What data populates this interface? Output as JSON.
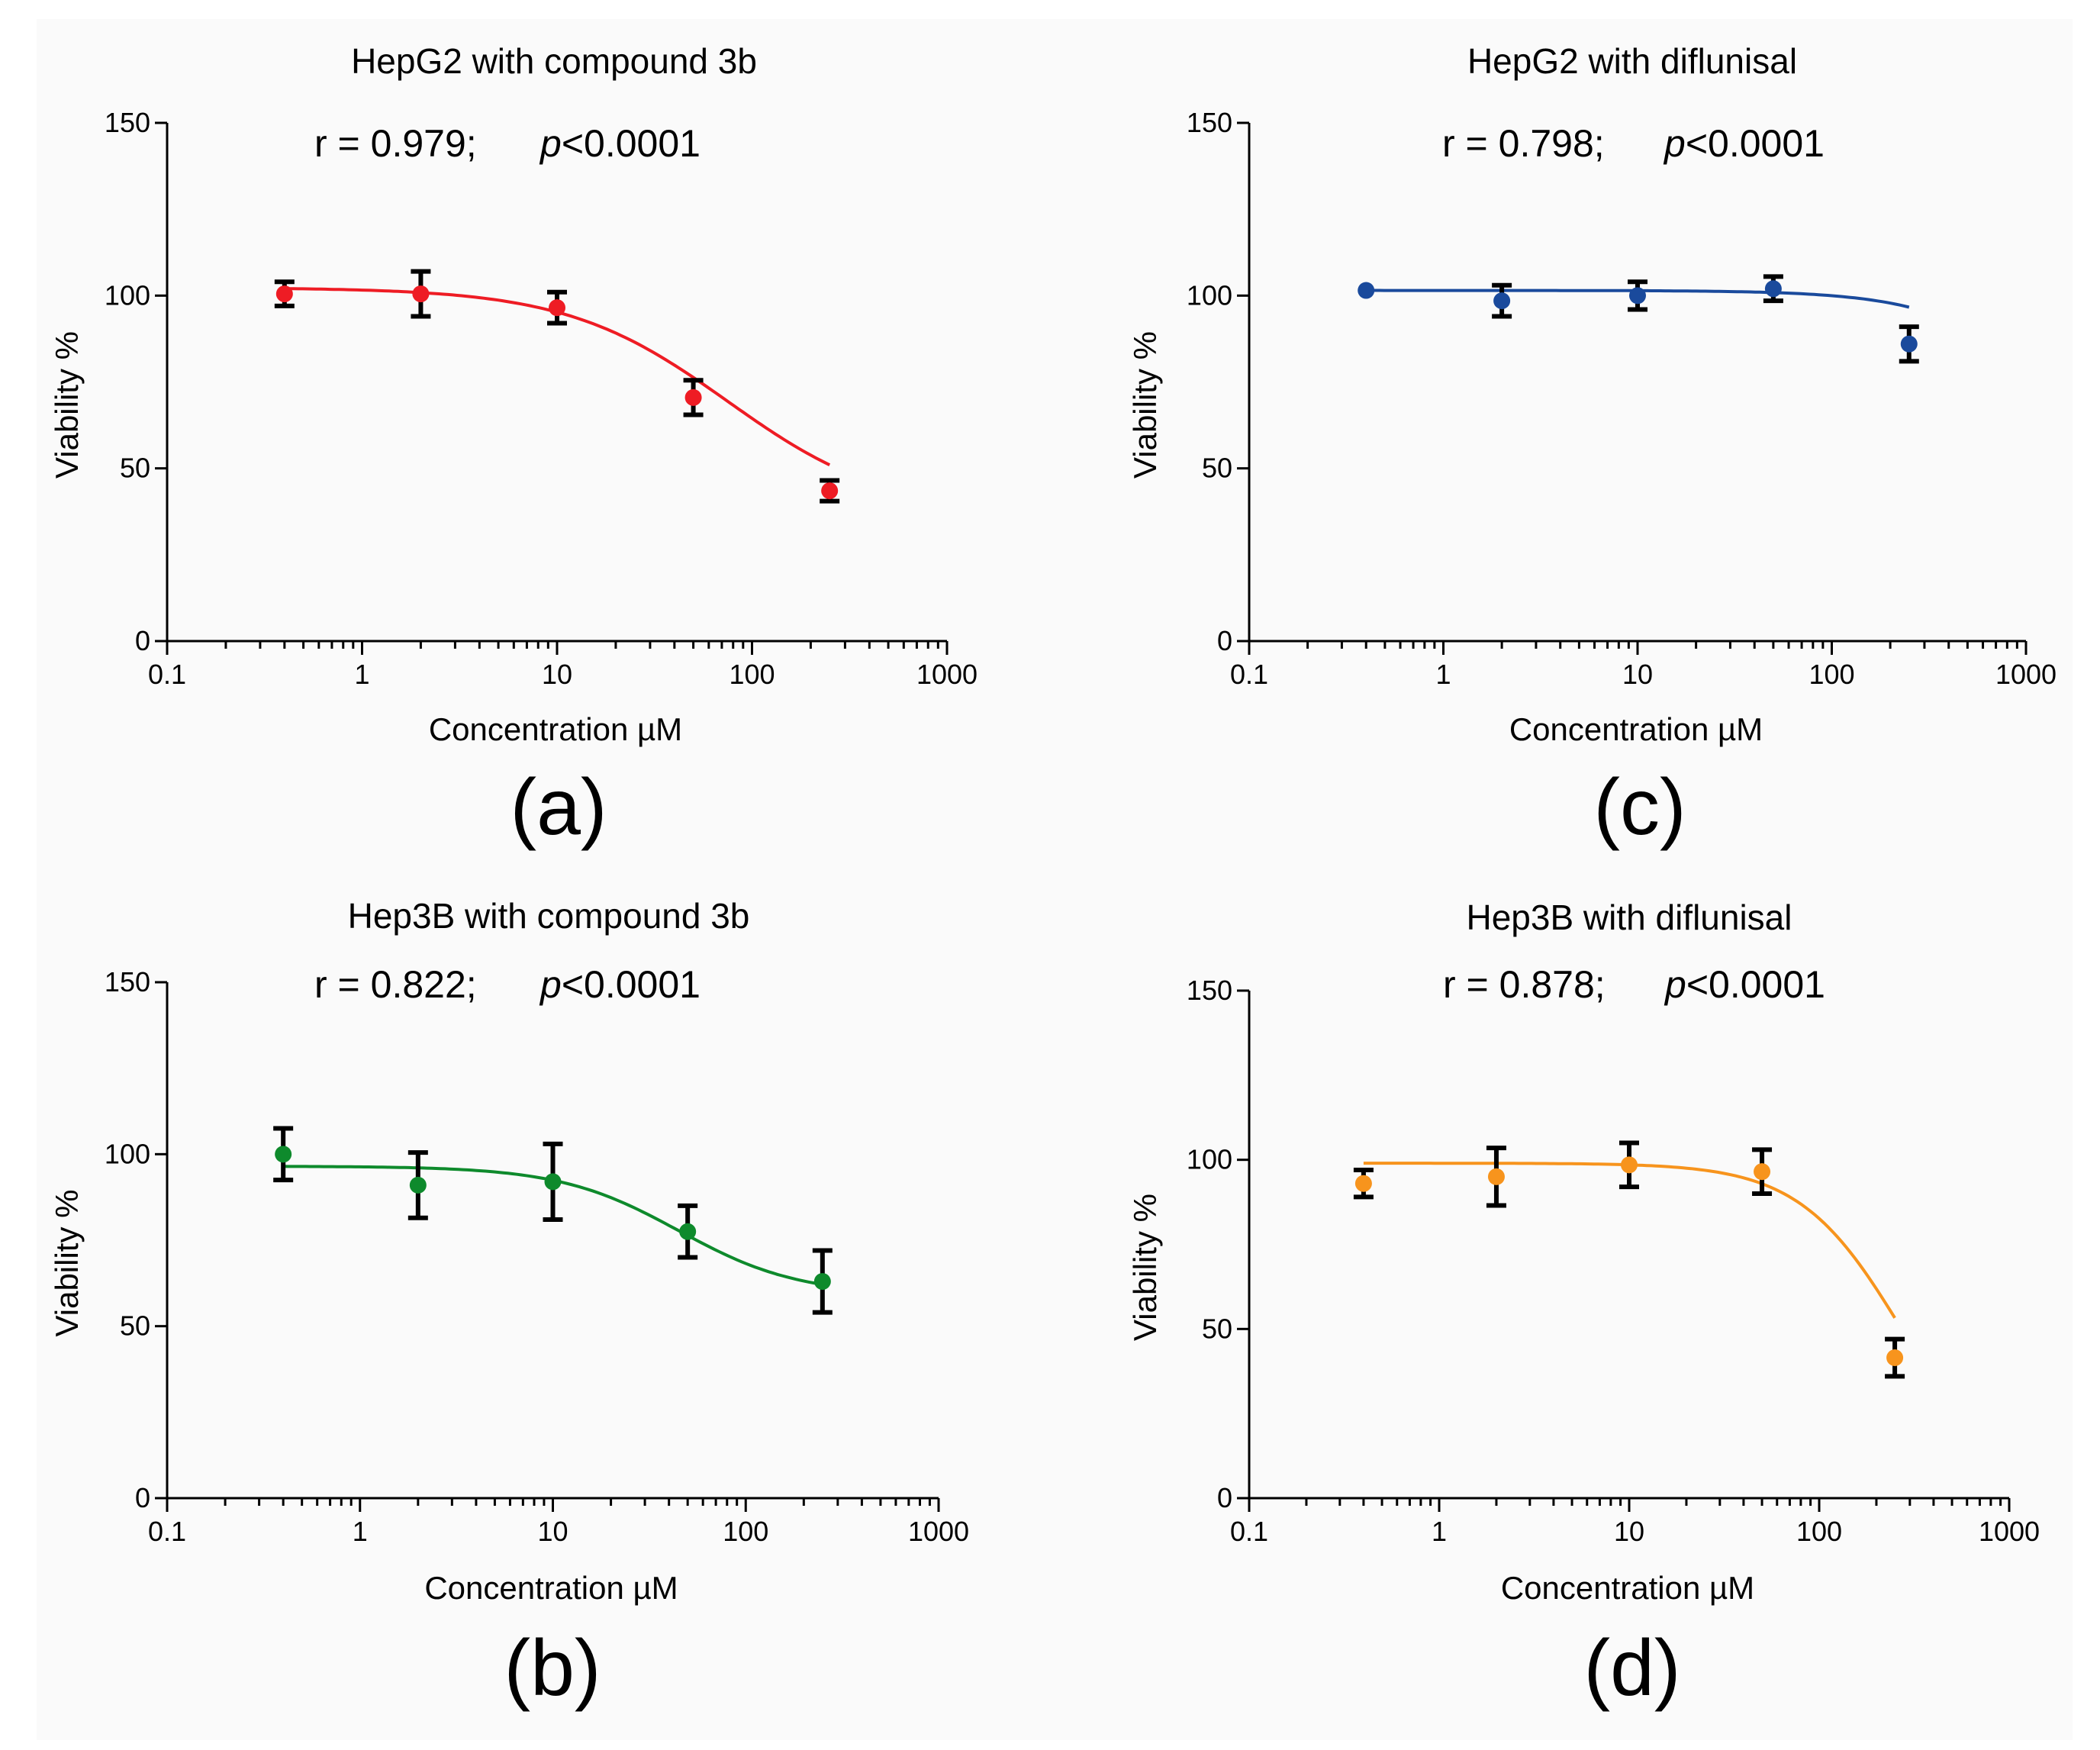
{
  "figure_background": "#fafafa",
  "chart_data": [
    {
      "id": "a",
      "type": "scatter",
      "title": "HepG2 with compound 3b",
      "stat_r": "r = 0.979;",
      "stat_p_italic": "p",
      "stat_p_rest": "<0.0001",
      "xlabel": "Concentration  µM",
      "ylabel": "Viability %",
      "panel_label": "(a)",
      "color": "#ee1c24",
      "xscale": "log",
      "xlim": [
        0.1,
        1000
      ],
      "ylim": [
        0,
        150
      ],
      "xticks": [
        0.1,
        1,
        10,
        100,
        1000
      ],
      "xtick_labels": [
        "0.1",
        "1",
        "10",
        "100",
        "1000"
      ],
      "yticks": [
        0,
        50,
        100,
        150
      ],
      "ytick_labels": [
        "0",
        "50",
        "100",
        "150"
      ],
      "x": [
        0.4,
        2,
        10,
        50,
        250
      ],
      "y": [
        100.5,
        100.5,
        96.5,
        70.5,
        43.5
      ],
      "err": [
        3.5,
        6.5,
        4.5,
        5.0,
        3.0
      ],
      "fit": {
        "top": 102.3,
        "bottom": 36.5,
        "ic50": 75,
        "hill": 1.05
      }
    },
    {
      "id": "b",
      "type": "scatter",
      "title": "Hep3B with compound 3b",
      "stat_r": "r = 0.822;",
      "stat_p_italic": "p",
      "stat_p_rest": "<0.0001",
      "xlabel": "Concentration  µM",
      "ylabel": "Viability %",
      "panel_label": "(b)",
      "color": "#0e8a2c",
      "xscale": "log",
      "xlim": [
        0.1,
        1000
      ],
      "ylim": [
        0,
        150
      ],
      "xticks": [
        0.1,
        1,
        10,
        100,
        1000
      ],
      "xtick_labels": [
        "0.1",
        "1",
        "10",
        "100",
        "1000"
      ],
      "yticks": [
        0,
        50,
        100,
        150
      ],
      "ytick_labels": [
        "0",
        "50",
        "100",
        "150"
      ],
      "x": [
        0.4,
        2,
        10,
        50,
        250
      ],
      "y": [
        100.0,
        91.0,
        92.0,
        77.5,
        63.0
      ],
      "err": [
        7.5,
        9.5,
        11.0,
        7.5,
        9.0
      ],
      "fit": {
        "top": 96.5,
        "bottom": 59.0,
        "ic50": 45,
        "hill": 1.4
      }
    },
    {
      "id": "c",
      "type": "scatter",
      "title": "HepG2 with diflunisal",
      "stat_r": "r = 0.798;",
      "stat_p_italic": "p",
      "stat_p_rest": "<0.0001",
      "xlabel": "Concentration  µM",
      "ylabel": "Viability %",
      "panel_label": "(c)",
      "color": "#1a4a9c",
      "xscale": "log",
      "xlim": [
        0.1,
        1000
      ],
      "ylim": [
        0,
        150
      ],
      "xticks": [
        0.1,
        1,
        10,
        100,
        1000
      ],
      "xtick_labels": [
        "0.1",
        "1",
        "10",
        "100",
        "1000"
      ],
      "yticks": [
        0,
        50,
        100,
        150
      ],
      "ytick_labels": [
        "0",
        "50",
        "100",
        "150"
      ],
      "x": [
        0.4,
        2,
        10,
        50,
        250
      ],
      "y": [
        101.5,
        98.5,
        100.0,
        102.0,
        86.0
      ],
      "err": [
        0,
        4.5,
        4.0,
        3.5,
        5.0
      ],
      "fit": {
        "top": 101.5,
        "bottom": 0,
        "ic50": 2500,
        "hill": 1.3
      }
    },
    {
      "id": "d",
      "type": "scatter",
      "title": "Hep3B with diflunisal",
      "stat_r": "r = 0.878;",
      "stat_p_italic": "p",
      "stat_p_rest": "<0.0001",
      "xlabel": "Concentration  µM",
      "ylabel": "Viability %",
      "panel_label": "(d)",
      "color": "#f7941d",
      "xscale": "log",
      "xlim": [
        0.1,
        1000
      ],
      "ylim": [
        0,
        150
      ],
      "xticks": [
        0.1,
        1,
        10,
        100,
        1000
      ],
      "xtick_labels": [
        "0.1",
        "1",
        "10",
        "100",
        "1000"
      ],
      "yticks": [
        0,
        50,
        100,
        150
      ],
      "ytick_labels": [
        "0",
        "50",
        "100",
        "150"
      ],
      "x": [
        0.4,
        2,
        10,
        50,
        250
      ],
      "y": [
        93.0,
        95.0,
        98.5,
        96.5,
        41.5
      ],
      "err": [
        4.0,
        8.5,
        6.5,
        6.5,
        5.5
      ],
      "fit": {
        "top": 99.0,
        "bottom": 0,
        "ic50": 275,
        "hill": 1.6
      }
    }
  ]
}
